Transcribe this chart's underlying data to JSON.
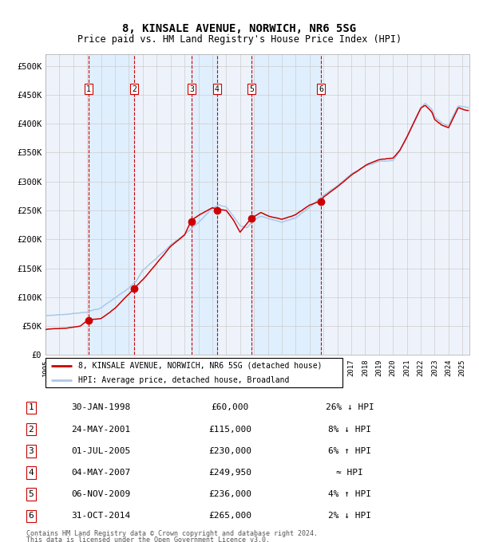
{
  "title": "8, KINSALE AVENUE, NORWICH, NR6 5SG",
  "subtitle": "Price paid vs. HM Land Registry's House Price Index (HPI)",
  "legend_line1": "8, KINSALE AVENUE, NORWICH, NR6 5SG (detached house)",
  "legend_line2": "HPI: Average price, detached house, Broadland",
  "footer1": "Contains HM Land Registry data © Crown copyright and database right 2024.",
  "footer2": "This data is licensed under the Open Government Licence v3.0.",
  "sale_points": [
    {
      "num": 1,
      "date_num": 1998.08,
      "price": 60000,
      "label": "30-JAN-1998",
      "price_str": "£60,000",
      "hpi_str": "26% ↓ HPI"
    },
    {
      "num": 2,
      "date_num": 2001.39,
      "price": 115000,
      "label": "24-MAY-2001",
      "price_str": "£115,000",
      "hpi_str": "8% ↓ HPI"
    },
    {
      "num": 3,
      "date_num": 2005.5,
      "price": 230000,
      "label": "01-JUL-2005",
      "price_str": "£230,000",
      "hpi_str": "6% ↑ HPI"
    },
    {
      "num": 4,
      "date_num": 2007.33,
      "price": 249950,
      "label": "04-MAY-2007",
      "price_str": "£249,950",
      "hpi_str": "≈ HPI"
    },
    {
      "num": 5,
      "date_num": 2009.84,
      "price": 236000,
      "label": "06-NOV-2009",
      "price_str": "£236,000",
      "hpi_str": "4% ↑ HPI"
    },
    {
      "num": 6,
      "date_num": 2014.83,
      "price": 265000,
      "label": "31-OCT-2014",
      "price_str": "£265,000",
      "hpi_str": "2% ↓ HPI"
    }
  ],
  "hpi_color": "#aac8e8",
  "price_color": "#cc0000",
  "dot_color": "#cc0000",
  "vline_color": "#cc0000",
  "shade_color": "#ddeeff",
  "grid_color": "#cccccc",
  "bg_color": "#eef3fb",
  "ylim": [
    0,
    520000
  ],
  "xlim_start": 1995.0,
  "xlim_end": 2025.5,
  "yticks": [
    0,
    50000,
    100000,
    150000,
    200000,
    250000,
    300000,
    350000,
    400000,
    450000,
    500000
  ],
  "ytick_labels": [
    "£0",
    "£50K",
    "£100K",
    "£150K",
    "£200K",
    "£250K",
    "£300K",
    "£350K",
    "£400K",
    "£450K",
    "£500K"
  ]
}
